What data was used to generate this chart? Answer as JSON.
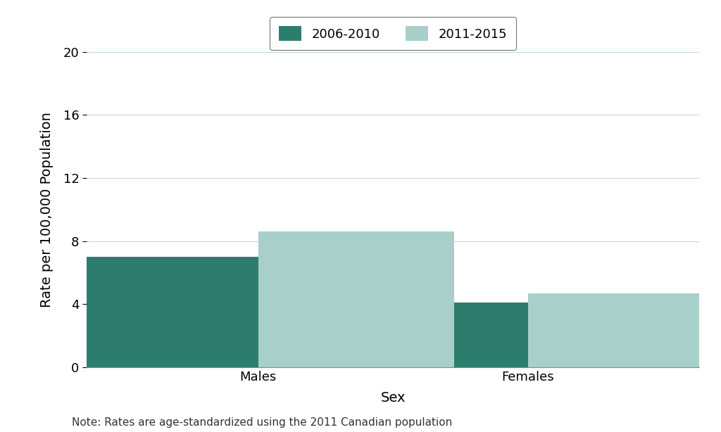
{
  "categories": [
    "Males",
    "Females"
  ],
  "series": [
    {
      "label": "2006-2010",
      "values": [
        7.0,
        4.1
      ],
      "color": "#2d7d6e"
    },
    {
      "label": "2011-2015",
      "values": [
        8.6,
        4.7
      ],
      "color": "#a8cfc9"
    }
  ],
  "xlabel": "Sex",
  "ylabel": "Rate per 100,000 Population",
  "ylim": [
    0,
    20
  ],
  "yticks": [
    0,
    4,
    8,
    12,
    16,
    20
  ],
  "note": "Note: Rates are age-standardized using the 2011 Canadian population",
  "bar_width": 0.32,
  "background_color": "#ffffff",
  "grid_color": "#c8dada",
  "legend_edge_color": "#555555",
  "tick_label_fontsize": 13,
  "axis_label_fontsize": 14,
  "legend_fontsize": 13,
  "note_fontsize": 11
}
